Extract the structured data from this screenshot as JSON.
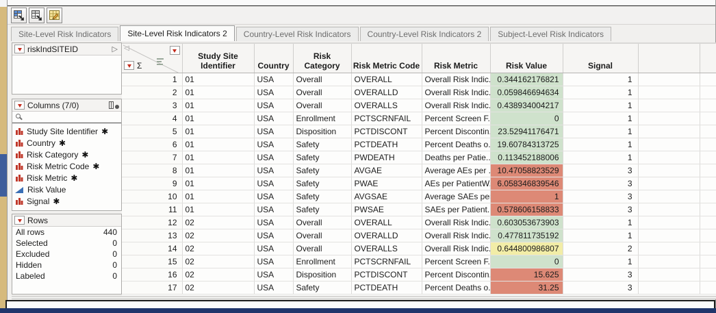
{
  "toolbar": {
    "icons": [
      "data-table-blue-icon",
      "data-table-gray-icon",
      "edit-data-table-icon"
    ]
  },
  "tabs": [
    {
      "label": "Site-Level Risk Indicators",
      "active": false
    },
    {
      "label": "Site-Level Risk Indicators 2",
      "active": true
    },
    {
      "label": "Country-Level Risk Indicators",
      "active": false
    },
    {
      "label": "Country-Level Risk Indicators 2",
      "active": false
    },
    {
      "label": "Subject-Level Risk Indicators",
      "active": false
    }
  ],
  "sidebar": {
    "table_panel": {
      "title": "riskIndSITEID",
      "expand_glyph": "▷"
    },
    "columns_panel": {
      "title": "Columns (7/0)",
      "star": "✱",
      "items": [
        {
          "label": "Study Site Identifier",
          "icon": "nominal",
          "starred": true
        },
        {
          "label": "Country",
          "icon": "nominal",
          "starred": true
        },
        {
          "label": "Risk Category",
          "icon": "nominal",
          "starred": true
        },
        {
          "label": "Risk Metric Code",
          "icon": "nominal",
          "starred": true
        },
        {
          "label": "Risk Metric",
          "icon": "nominal",
          "starred": true
        },
        {
          "label": "Risk Value",
          "icon": "continuous",
          "starred": false
        },
        {
          "label": "Signal",
          "icon": "nominal",
          "starred": true
        }
      ]
    },
    "rows_panel": {
      "title": "Rows",
      "stats": [
        {
          "label": "All rows",
          "value": "440"
        },
        {
          "label": "Selected",
          "value": "0"
        },
        {
          "label": "Excluded",
          "value": "0"
        },
        {
          "label": "Hidden",
          "value": "0"
        },
        {
          "label": "Labeled",
          "value": "0"
        }
      ]
    }
  },
  "table": {
    "corner": {
      "sum_glyph": "Σ",
      "collapse_glyph": "◁"
    },
    "columns": [
      "Study Site Identifier",
      "Country",
      "Risk Category",
      "Risk Metric Code",
      "Risk Metric",
      "Risk Value",
      "Signal"
    ],
    "signal_colors": {
      "1": "#cfe2cc",
      "2": "#f2eda7",
      "3": "#dd8976"
    },
    "rows": [
      {
        "n": "1",
        "site": "01",
        "country": "USA",
        "category": "Overall",
        "code": "OVERALL",
        "metric": "Overall Risk Indic...",
        "value": "0.344162176821",
        "signal": "1"
      },
      {
        "n": "2",
        "site": "01",
        "country": "USA",
        "category": "Overall",
        "code": "OVERALLD",
        "metric": "Overall Risk Indic...",
        "value": "0.059846694634",
        "signal": "1"
      },
      {
        "n": "3",
        "site": "01",
        "country": "USA",
        "category": "Overall",
        "code": "OVERALLS",
        "metric": "Overall Risk Indic...",
        "value": "0.438934004217",
        "signal": "1"
      },
      {
        "n": "4",
        "site": "01",
        "country": "USA",
        "category": "Enrollment",
        "code": "PCTSCRNFAIL",
        "metric": "Percent Screen F...",
        "value": "0",
        "signal": "1"
      },
      {
        "n": "5",
        "site": "01",
        "country": "USA",
        "category": "Disposition",
        "code": "PCTDISCONT",
        "metric": "Percent Discontin...",
        "value": "23.52941176471",
        "signal": "1"
      },
      {
        "n": "6",
        "site": "01",
        "country": "USA",
        "category": "Safety",
        "code": "PCTDEATH",
        "metric": "Percent Deaths o...",
        "value": "19.60784313725",
        "signal": "1"
      },
      {
        "n": "7",
        "site": "01",
        "country": "USA",
        "category": "Safety",
        "code": "PWDEATH",
        "metric": "Deaths per Patie...",
        "value": "0.113452188006",
        "signal": "1"
      },
      {
        "n": "8",
        "site": "01",
        "country": "USA",
        "category": "Safety",
        "code": "AVGAE",
        "metric": "Average AEs per ...",
        "value": "10.47058823529",
        "signal": "3"
      },
      {
        "n": "9",
        "site": "01",
        "country": "USA",
        "category": "Safety",
        "code": "PWAE",
        "metric": "AEs per PatientW...",
        "value": "6.058346839546",
        "signal": "3"
      },
      {
        "n": "10",
        "site": "01",
        "country": "USA",
        "category": "Safety",
        "code": "AVGSAE",
        "metric": "Average SAEs per...",
        "value": "1",
        "signal": "3"
      },
      {
        "n": "11",
        "site": "01",
        "country": "USA",
        "category": "Safety",
        "code": "PWSAE",
        "metric": "SAEs per Patient...",
        "value": "0.578606158833",
        "signal": "3"
      },
      {
        "n": "12",
        "site": "02",
        "country": "USA",
        "category": "Overall",
        "code": "OVERALL",
        "metric": "Overall Risk Indic...",
        "value": "0.603053673903",
        "signal": "1"
      },
      {
        "n": "13",
        "site": "02",
        "country": "USA",
        "category": "Overall",
        "code": "OVERALLD",
        "metric": "Overall Risk Indic...",
        "value": "0.477811735192",
        "signal": "1"
      },
      {
        "n": "14",
        "site": "02",
        "country": "USA",
        "category": "Overall",
        "code": "OVERALLS",
        "metric": "Overall Risk Indic...",
        "value": "0.644800986807",
        "signal": "2"
      },
      {
        "n": "15",
        "site": "02",
        "country": "USA",
        "category": "Enrollment",
        "code": "PCTSCRNFAIL",
        "metric": "Percent Screen F...",
        "value": "0",
        "signal": "1"
      },
      {
        "n": "16",
        "site": "02",
        "country": "USA",
        "category": "Disposition",
        "code": "PCTDISCONT",
        "metric": "Percent Discontin...",
        "value": "15.625",
        "signal": "3"
      },
      {
        "n": "17",
        "site": "02",
        "country": "USA",
        "category": "Safety",
        "code": "PCTDEATH",
        "metric": "Percent Deaths o...",
        "value": "31.25",
        "signal": "3"
      }
    ]
  }
}
